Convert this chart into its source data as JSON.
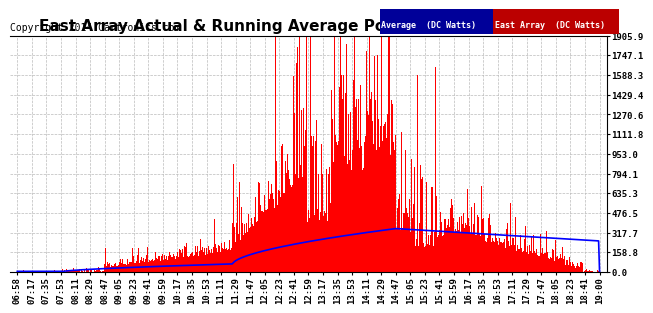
{
  "title": "East Array Actual & Running Average Power Wed Sep 10 19:01",
  "copyright": "Copyright 2014 Cartronics.com",
  "yticks": [
    0.0,
    158.8,
    317.7,
    476.5,
    635.3,
    794.1,
    953.0,
    1111.8,
    1270.6,
    1429.4,
    1588.3,
    1747.1,
    1905.9
  ],
  "ymax": 1905.9,
  "ymin": 0.0,
  "xtick_labels": [
    "06:58",
    "07:17",
    "07:35",
    "07:53",
    "08:11",
    "08:29",
    "08:47",
    "09:05",
    "09:23",
    "09:41",
    "09:59",
    "10:17",
    "10:35",
    "10:53",
    "11:11",
    "11:29",
    "11:47",
    "12:05",
    "12:23",
    "12:41",
    "12:59",
    "13:17",
    "13:35",
    "13:53",
    "14:11",
    "14:29",
    "14:47",
    "15:05",
    "15:23",
    "15:41",
    "15:59",
    "16:17",
    "16:35",
    "16:53",
    "17:11",
    "17:29",
    "17:47",
    "18:05",
    "18:23",
    "18:41",
    "19:00"
  ],
  "bar_color": "#FF0000",
  "avg_color": "#0000FF",
  "background_color": "#FFFFFF",
  "grid_color": "#BBBBBB",
  "legend_avg_bg": "#000099",
  "legend_east_bg": "#BB0000",
  "title_fontsize": 11,
  "copyright_fontsize": 7,
  "tick_fontsize": 6.5
}
